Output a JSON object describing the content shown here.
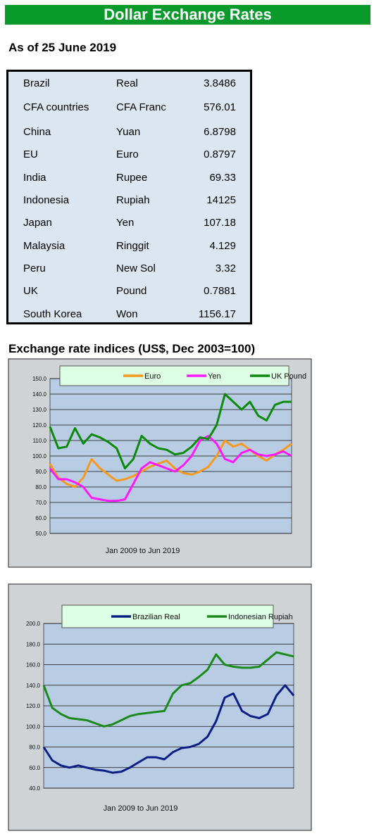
{
  "header": {
    "title": "Dollar Exchange Rates"
  },
  "as_of": "As of 25 June 2019",
  "rates": [
    {
      "country": "Brazil",
      "currency": "Real",
      "value": "3.8486"
    },
    {
      "country": "CFA countries",
      "currency": "CFA Franc",
      "value": "576.01"
    },
    {
      "country": "China",
      "currency": "Yuan",
      "value": "6.8798"
    },
    {
      "country": "EU",
      "currency": "Euro",
      "value": "0.8797"
    },
    {
      "country": "India",
      "currency": "Rupee",
      "value": "69.33"
    },
    {
      "country": "Indonesia",
      "currency": "Rupiah",
      "value": "14125"
    },
    {
      "country": "Japan",
      "currency": "Yen",
      "value": "107.18"
    },
    {
      "country": "Malaysia",
      "currency": "Ringgit",
      "value": "4.129"
    },
    {
      "country": "Peru",
      "currency": "New Sol",
      "value": "3.32"
    },
    {
      "country": "UK",
      "currency": "Pound",
      "value": "0.7881"
    },
    {
      "country": "South Korea",
      "currency": "Won",
      "value": "1156.17"
    }
  ],
  "indices_title": "Exchange rate indices (US$, Dec 2003=100)",
  "chart_data": [
    {
      "type": "line",
      "xlabel": "Jan 2009  to Jun 2019",
      "ylim": [
        50,
        150
      ],
      "yticks": [
        "50.0",
        "60.0",
        "70.0",
        "80.0",
        "90.0",
        "100.0",
        "110.0",
        "120.0",
        "130.0",
        "140.0",
        "150.0"
      ],
      "grid": true,
      "legend_position": "top-center",
      "series": [
        {
          "name": "Euro",
          "color": "#f59a1f",
          "values": [
            95,
            86,
            82,
            80,
            86,
            98,
            92,
            88,
            84,
            85,
            87,
            90,
            93,
            95,
            97,
            92,
            89,
            88,
            90,
            93,
            100,
            110,
            106,
            108,
            104,
            100,
            97,
            101,
            104,
            108
          ]
        },
        {
          "name": "Yen",
          "color": "#ff19ff",
          "values": [
            92,
            85,
            85,
            83,
            80,
            73,
            72,
            71,
            71,
            72,
            82,
            92,
            96,
            94,
            92,
            90,
            94,
            100,
            110,
            113,
            108,
            98,
            96,
            102,
            104,
            101,
            100,
            101,
            103,
            100
          ]
        },
        {
          "name": "UK Pound",
          "color": "#0c8a0c",
          "values": [
            119,
            105,
            106,
            118,
            108,
            114,
            112,
            109,
            105,
            92,
            98,
            113,
            108,
            105,
            104,
            101,
            102,
            106,
            112,
            111,
            120,
            140,
            135,
            130,
            135,
            126,
            123,
            133,
            135,
            135
          ]
        }
      ]
    },
    {
      "type": "line",
      "xlabel": "Jan 2009  to Jun 2019",
      "ylim": [
        40,
        200
      ],
      "yticks": [
        "40.0",
        "60.0",
        "80.0",
        "100.0",
        "120.0",
        "140.0",
        "160.0",
        "180.0",
        "200.0"
      ],
      "grid": true,
      "legend_position": "top-center",
      "series": [
        {
          "name": "Brazilian Real",
          "color": "#0a1e86",
          "values": [
            80,
            67,
            62,
            60,
            62,
            60,
            58,
            57,
            55,
            56,
            60,
            65,
            70,
            70,
            68,
            75,
            79,
            80,
            83,
            90,
            105,
            128,
            132,
            115,
            110,
            108,
            112,
            130,
            140,
            130
          ]
        },
        {
          "name": "Indonesian Rupiah",
          "color": "#1a8a1a",
          "values": [
            140,
            118,
            112,
            108,
            107,
            106,
            103,
            100,
            102,
            106,
            110,
            112,
            113,
            114,
            115,
            132,
            140,
            142,
            148,
            155,
            170,
            160,
            158,
            157,
            157,
            158,
            165,
            172,
            170,
            168
          ]
        }
      ]
    }
  ]
}
